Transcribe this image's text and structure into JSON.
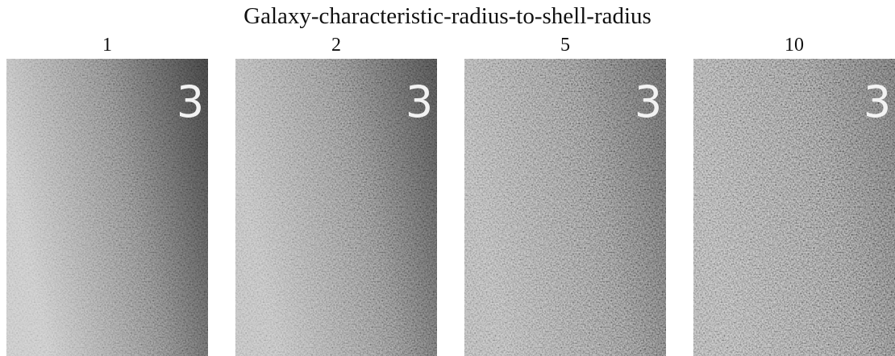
{
  "title": "Galaxy-characteristic-radius-to-shell-radius",
  "panels": [
    {
      "label": "1",
      "digit": "3"
    },
    {
      "label": "2",
      "digit": "3"
    },
    {
      "label": "5",
      "digit": "3"
    },
    {
      "label": "10",
      "digit": "3"
    }
  ]
}
